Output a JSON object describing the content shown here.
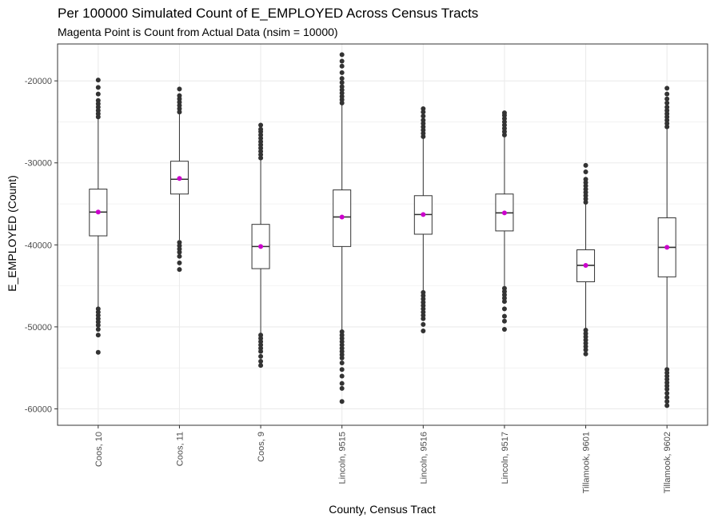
{
  "chart_data": {
    "type": "boxplot",
    "title": "Per 100000 Simulated Count of E_EMPLOYED Across Census Tracts",
    "subtitle": "Magenta Point is Count from Actual Data (nsim = 10000)",
    "xlabel": "County, Census Tract",
    "ylabel": "E_EMPLOYED (Count)",
    "ylim": [
      -62000,
      -15500
    ],
    "yticks": [
      -20000,
      -30000,
      -40000,
      -50000,
      -60000
    ],
    "ytick_labels": [
      "-20000",
      "-30000",
      "-40000",
      "-50000",
      "-60000"
    ],
    "categories": [
      "Coos, 10",
      "Coos, 11",
      "Coos, 9",
      "Lincoln, 9515",
      "Lincoln, 9516",
      "Lincoln, 9517",
      "Tillamook, 9601",
      "Tillamook, 9602"
    ],
    "boxes": [
      {
        "category": "Coos, 10",
        "q1": -38900,
        "median": -36000,
        "q3": -33200,
        "whisker_low": -47600,
        "whisker_high": -24600,
        "actual": -36000,
        "outliers_low": [
          -47800,
          -48200,
          -48600,
          -49000,
          -49400,
          -49800,
          -50300,
          -51000,
          -53100
        ],
        "outliers_high": [
          -24400,
          -24000,
          -23600,
          -23200,
          -22800,
          -22400,
          -21600,
          -20800,
          -19900
        ]
      },
      {
        "category": "Coos, 11",
        "q1": -33800,
        "median": -32000,
        "q3": -29800,
        "whisker_low": -39400,
        "whisker_high": -24000,
        "actual": -31900,
        "outliers_low": [
          -39700,
          -40100,
          -40500,
          -40900,
          -41400,
          -42200,
          -43000
        ],
        "outliers_high": [
          -23800,
          -23400,
          -23000,
          -22600,
          -22200,
          -21800,
          -21000
        ]
      },
      {
        "category": "Coos, 9",
        "q1": -42900,
        "median": -40200,
        "q3": -37500,
        "whisker_low": -50800,
        "whisker_high": -29600,
        "actual": -40200,
        "outliers_low": [
          -51000,
          -51400,
          -51800,
          -52200,
          -52600,
          -53000,
          -53600,
          -54200,
          -54700
        ],
        "outliers_high": [
          -29400,
          -29000,
          -28600,
          -28200,
          -27800,
          -27400,
          -27000,
          -26600,
          -26200,
          -25900,
          -25400
        ]
      },
      {
        "category": "Lincoln, 9515",
        "q1": -40200,
        "median": -36600,
        "q3": -33300,
        "whisker_low": -50400,
        "whisker_high": -22900,
        "actual": -36600,
        "outliers_low": [
          -50600,
          -51000,
          -51400,
          -51800,
          -52200,
          -52600,
          -53000,
          -53400,
          -53800,
          -54400,
          -55200,
          -56000,
          -56900,
          -57500,
          -59100
        ],
        "outliers_high": [
          -22700,
          -22300,
          -21900,
          -21500,
          -21100,
          -20700,
          -20200,
          -19700,
          -19000,
          -18200,
          -17600,
          -16800
        ]
      },
      {
        "category": "Lincoln, 9516",
        "q1": -38700,
        "median": -36300,
        "q3": -34000,
        "whisker_low": -45600,
        "whisker_high": -27000,
        "actual": -36300,
        "outliers_low": [
          -45800,
          -46200,
          -46600,
          -47000,
          -47400,
          -47800,
          -48200,
          -48600,
          -49000,
          -49700,
          -50500
        ],
        "outliers_high": [
          -26800,
          -26400,
          -26000,
          -25600,
          -25200,
          -24800,
          -24300,
          -23800,
          -23400
        ]
      },
      {
        "category": "Lincoln, 9517",
        "q1": -38300,
        "median": -36100,
        "q3": -33800,
        "whisker_low": -45100,
        "whisker_high": -26800,
        "actual": -36100,
        "outliers_low": [
          -45300,
          -45700,
          -46100,
          -46500,
          -46900,
          -47800,
          -48700,
          -49300,
          -50300
        ],
        "outliers_high": [
          -26600,
          -26200,
          -25800,
          -25400,
          -25000,
          -24600,
          -24200,
          -23900
        ]
      },
      {
        "category": "Tillamook, 9601",
        "q1": -44500,
        "median": -42500,
        "q3": -40600,
        "whisker_low": -50200,
        "whisker_high": -35000,
        "actual": -42500,
        "outliers_low": [
          -50400,
          -50800,
          -51200,
          -51600,
          -52000,
          -52400,
          -52800,
          -53300
        ],
        "outliers_high": [
          -34800,
          -34400,
          -34000,
          -33600,
          -33200,
          -32800,
          -32400,
          -32000,
          -31100,
          -30300
        ]
      },
      {
        "category": "Tillamook, 9602",
        "q1": -43900,
        "median": -40300,
        "q3": -36700,
        "whisker_low": -55000,
        "whisker_high": -25800,
        "actual": -40300,
        "outliers_low": [
          -55200,
          -55600,
          -56000,
          -56400,
          -56800,
          -57200,
          -57600,
          -58100,
          -58600,
          -59100,
          -59600
        ],
        "outliers_high": [
          -25600,
          -25200,
          -24800,
          -24400,
          -24000,
          -23600,
          -23200,
          -22700,
          -22200,
          -21600,
          -20900
        ]
      }
    ],
    "grid": true,
    "colors": {
      "box_stroke": "#333333",
      "outlier": "#333333",
      "actual_point": "#cc00cc",
      "grid": "#ebebeb",
      "panel_border": "#333333"
    }
  }
}
